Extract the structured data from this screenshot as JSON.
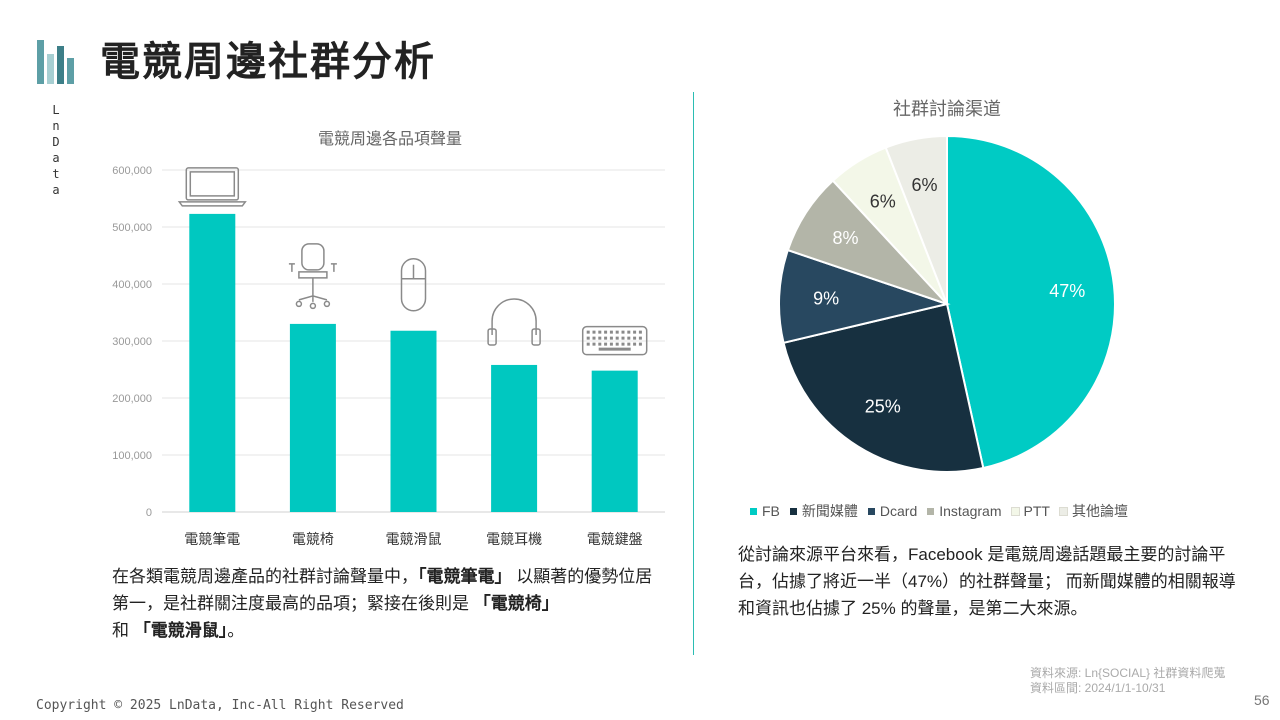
{
  "page": {
    "title": "電競周邊社群分析",
    "brand_vertical": "LnData",
    "copyright": "Copyright © 2025 LnData, Inc-All Right Reserved",
    "page_number": "56",
    "source_line1": "資料來源: Ln{SOCIAL} 社群資料爬蒐",
    "source_line2": "資料區間: 2024/1/1-10/31"
  },
  "bar_text": {
    "p1": "在各類電競周邊產品的社群討論聲量中，",
    "b1": "「電競筆電」",
    "p2": "以顯著的優勢位居第一，是社群關注度最高的品項；緊接在後則是",
    "b2": "「電競椅」",
    "p3": "和",
    "b3": "「電競滑鼠」",
    "p4": "。"
  },
  "pie_text": "從討論來源平台來看，Facebook 是電競周邊話題最主要的討論平台，佔據了將近一半（47%）的社群聲量； 而新聞媒體的相關報導和資訊也佔據了 25% 的聲量，是第二大來源。",
  "colors": {
    "accent": "#00c8c0",
    "divider": "#2bbdb3"
  },
  "chart_data": [
    {
      "type": "bar",
      "title": "電競周邊各品項聲量",
      "categories": [
        "電競筆電",
        "電競椅",
        "電競滑鼠",
        "電競耳機",
        "電競鍵盤"
      ],
      "category_icons": [
        "laptop-icon",
        "chair-icon",
        "mouse-icon",
        "headphones-icon",
        "keyboard-icon"
      ],
      "values": [
        523000,
        330000,
        318000,
        258000,
        248000
      ],
      "ylim": [
        0,
        600000
      ],
      "yticks": [
        0,
        100000,
        200000,
        300000,
        400000,
        500000,
        600000
      ],
      "ytick_labels": [
        "0",
        "100,000",
        "200,000",
        "300,000",
        "400,000",
        "500,000",
        "600,000"
      ],
      "grid": true,
      "color": "#00c8c0"
    },
    {
      "type": "pie",
      "title": "社群討論渠道",
      "labels": [
        "FB",
        "新聞媒體",
        "Dcard",
        "Instagram",
        "PTT",
        "其他論壇"
      ],
      "values": [
        47,
        25,
        9,
        8,
        6,
        6
      ],
      "value_labels": [
        "47%",
        "25%",
        "9%",
        "8%",
        "6%",
        "6%"
      ],
      "colors": [
        "#00cbc4",
        "#173040",
        "#284860",
        "#b3b5a8",
        "#f3f7e8",
        "#ecede6"
      ],
      "label_colors": [
        "#ffffff",
        "#ffffff",
        "#ffffff",
        "#ffffff",
        "#333333",
        "#333333"
      ],
      "legend": "bottom"
    }
  ]
}
